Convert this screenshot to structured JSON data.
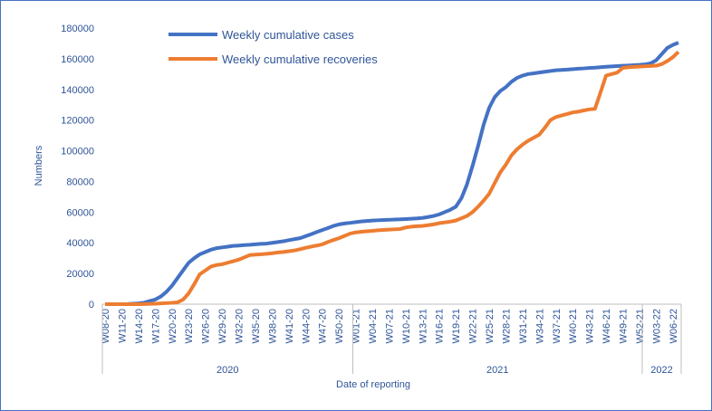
{
  "chart_data": {
    "type": "line",
    "y_label": "Numbers",
    "x_label": "Date of reporting",
    "legend": "upper left",
    "ylim": [
      0,
      180000
    ],
    "yticks": [
      0,
      20000,
      40000,
      60000,
      80000,
      100000,
      120000,
      140000,
      160000,
      180000
    ],
    "categories": [
      "W08-20",
      null,
      null,
      "W11-20",
      null,
      null,
      "W14-20",
      null,
      null,
      "W17-20",
      null,
      null,
      "W20-20",
      null,
      null,
      "W23-20",
      null,
      null,
      "W26-20",
      null,
      null,
      "W29-20",
      null,
      null,
      "W32-20",
      null,
      null,
      "W35-20",
      null,
      null,
      "W38-20",
      null,
      null,
      "W41-20",
      null,
      null,
      "W44-20",
      null,
      null,
      "W47-20",
      null,
      null,
      "W50-20",
      null,
      null,
      "W01-21",
      null,
      null,
      "W04-21",
      null,
      null,
      "W07-21",
      null,
      null,
      "W10-21",
      null,
      null,
      "W13-21",
      null,
      null,
      "W16-21",
      null,
      null,
      "W19-21",
      null,
      null,
      "W22-21",
      null,
      null,
      "W25-21",
      null,
      null,
      "W28-21",
      null,
      null,
      "W31-21",
      null,
      null,
      "W34-21",
      null,
      null,
      "W37-21",
      null,
      null,
      "W40-21",
      null,
      null,
      "W43-21",
      null,
      null,
      "W46-21",
      null,
      null,
      "W49-21",
      null,
      null,
      "W52-21",
      null,
      null,
      "W03-22",
      null,
      null,
      "W06-22",
      null
    ],
    "groups": [
      {
        "name": "2020",
        "count": 45
      },
      {
        "name": "2021",
        "count": 52
      },
      {
        "name": "2022",
        "count": 7
      }
    ],
    "series": [
      {
        "name": "Weekly cumulative cases",
        "color": "#4472c4",
        "values": [
          0,
          0,
          0,
          0,
          100,
          300,
          500,
          1000,
          2000,
          3000,
          5000,
          8000,
          12000,
          17000,
          22000,
          27000,
          30000,
          32500,
          34000,
          35500,
          36500,
          37000,
          37500,
          38000,
          38200,
          38500,
          38700,
          39000,
          39300,
          39500,
          40000,
          40500,
          41000,
          41700,
          42400,
          43000,
          44300,
          45600,
          47000,
          48300,
          49600,
          51000,
          52000,
          52600,
          53000,
          53500,
          53900,
          54200,
          54500,
          54700,
          54900,
          55000,
          55200,
          55300,
          55500,
          55700,
          55900,
          56200,
          56800,
          57500,
          58500,
          60000,
          61500,
          63500,
          69000,
          78000,
          90000,
          103000,
          117000,
          128000,
          135000,
          139000,
          141500,
          145000,
          147500,
          149000,
          150000,
          150500,
          151000,
          151500,
          152000,
          152500,
          152700,
          152900,
          153200,
          153500,
          153700,
          154000,
          154200,
          154500,
          154800,
          155000,
          155200,
          155400,
          155600,
          155800,
          156000,
          156300,
          157000,
          159000,
          163000,
          167000,
          169000,
          170500
        ]
      },
      {
        "name": "Weekly cumulative recoveries",
        "color": "#ed7d31",
        "values": [
          0,
          0,
          0,
          0,
          0,
          0,
          0,
          100,
          200,
          300,
          500,
          700,
          900,
          1200,
          3000,
          7000,
          13000,
          19500,
          22000,
          24500,
          25500,
          26000,
          27000,
          28000,
          29000,
          30500,
          32000,
          32300,
          32500,
          32800,
          33200,
          33700,
          34000,
          34500,
          35000,
          35800,
          36700,
          37500,
          38200,
          39000,
          40500,
          41800,
          43000,
          44500,
          46000,
          46800,
          47200,
          47500,
          47800,
          48200,
          48400,
          48600,
          48800,
          49000,
          50000,
          50500,
          50800,
          51000,
          51500,
          52000,
          52800,
          53300,
          53800,
          54500,
          56000,
          57500,
          60000,
          63500,
          67500,
          72000,
          79000,
          86000,
          91000,
          97000,
          101000,
          104000,
          106500,
          108500,
          110500,
          115000,
          120000,
          122000,
          123000,
          124000,
          125000,
          125500,
          126300,
          127000,
          127300,
          138000,
          149000,
          150000,
          151000,
          154000,
          154500,
          154700,
          154900,
          155100,
          155300,
          155500,
          156500,
          158500,
          161000,
          164500
        ]
      }
    ]
  }
}
